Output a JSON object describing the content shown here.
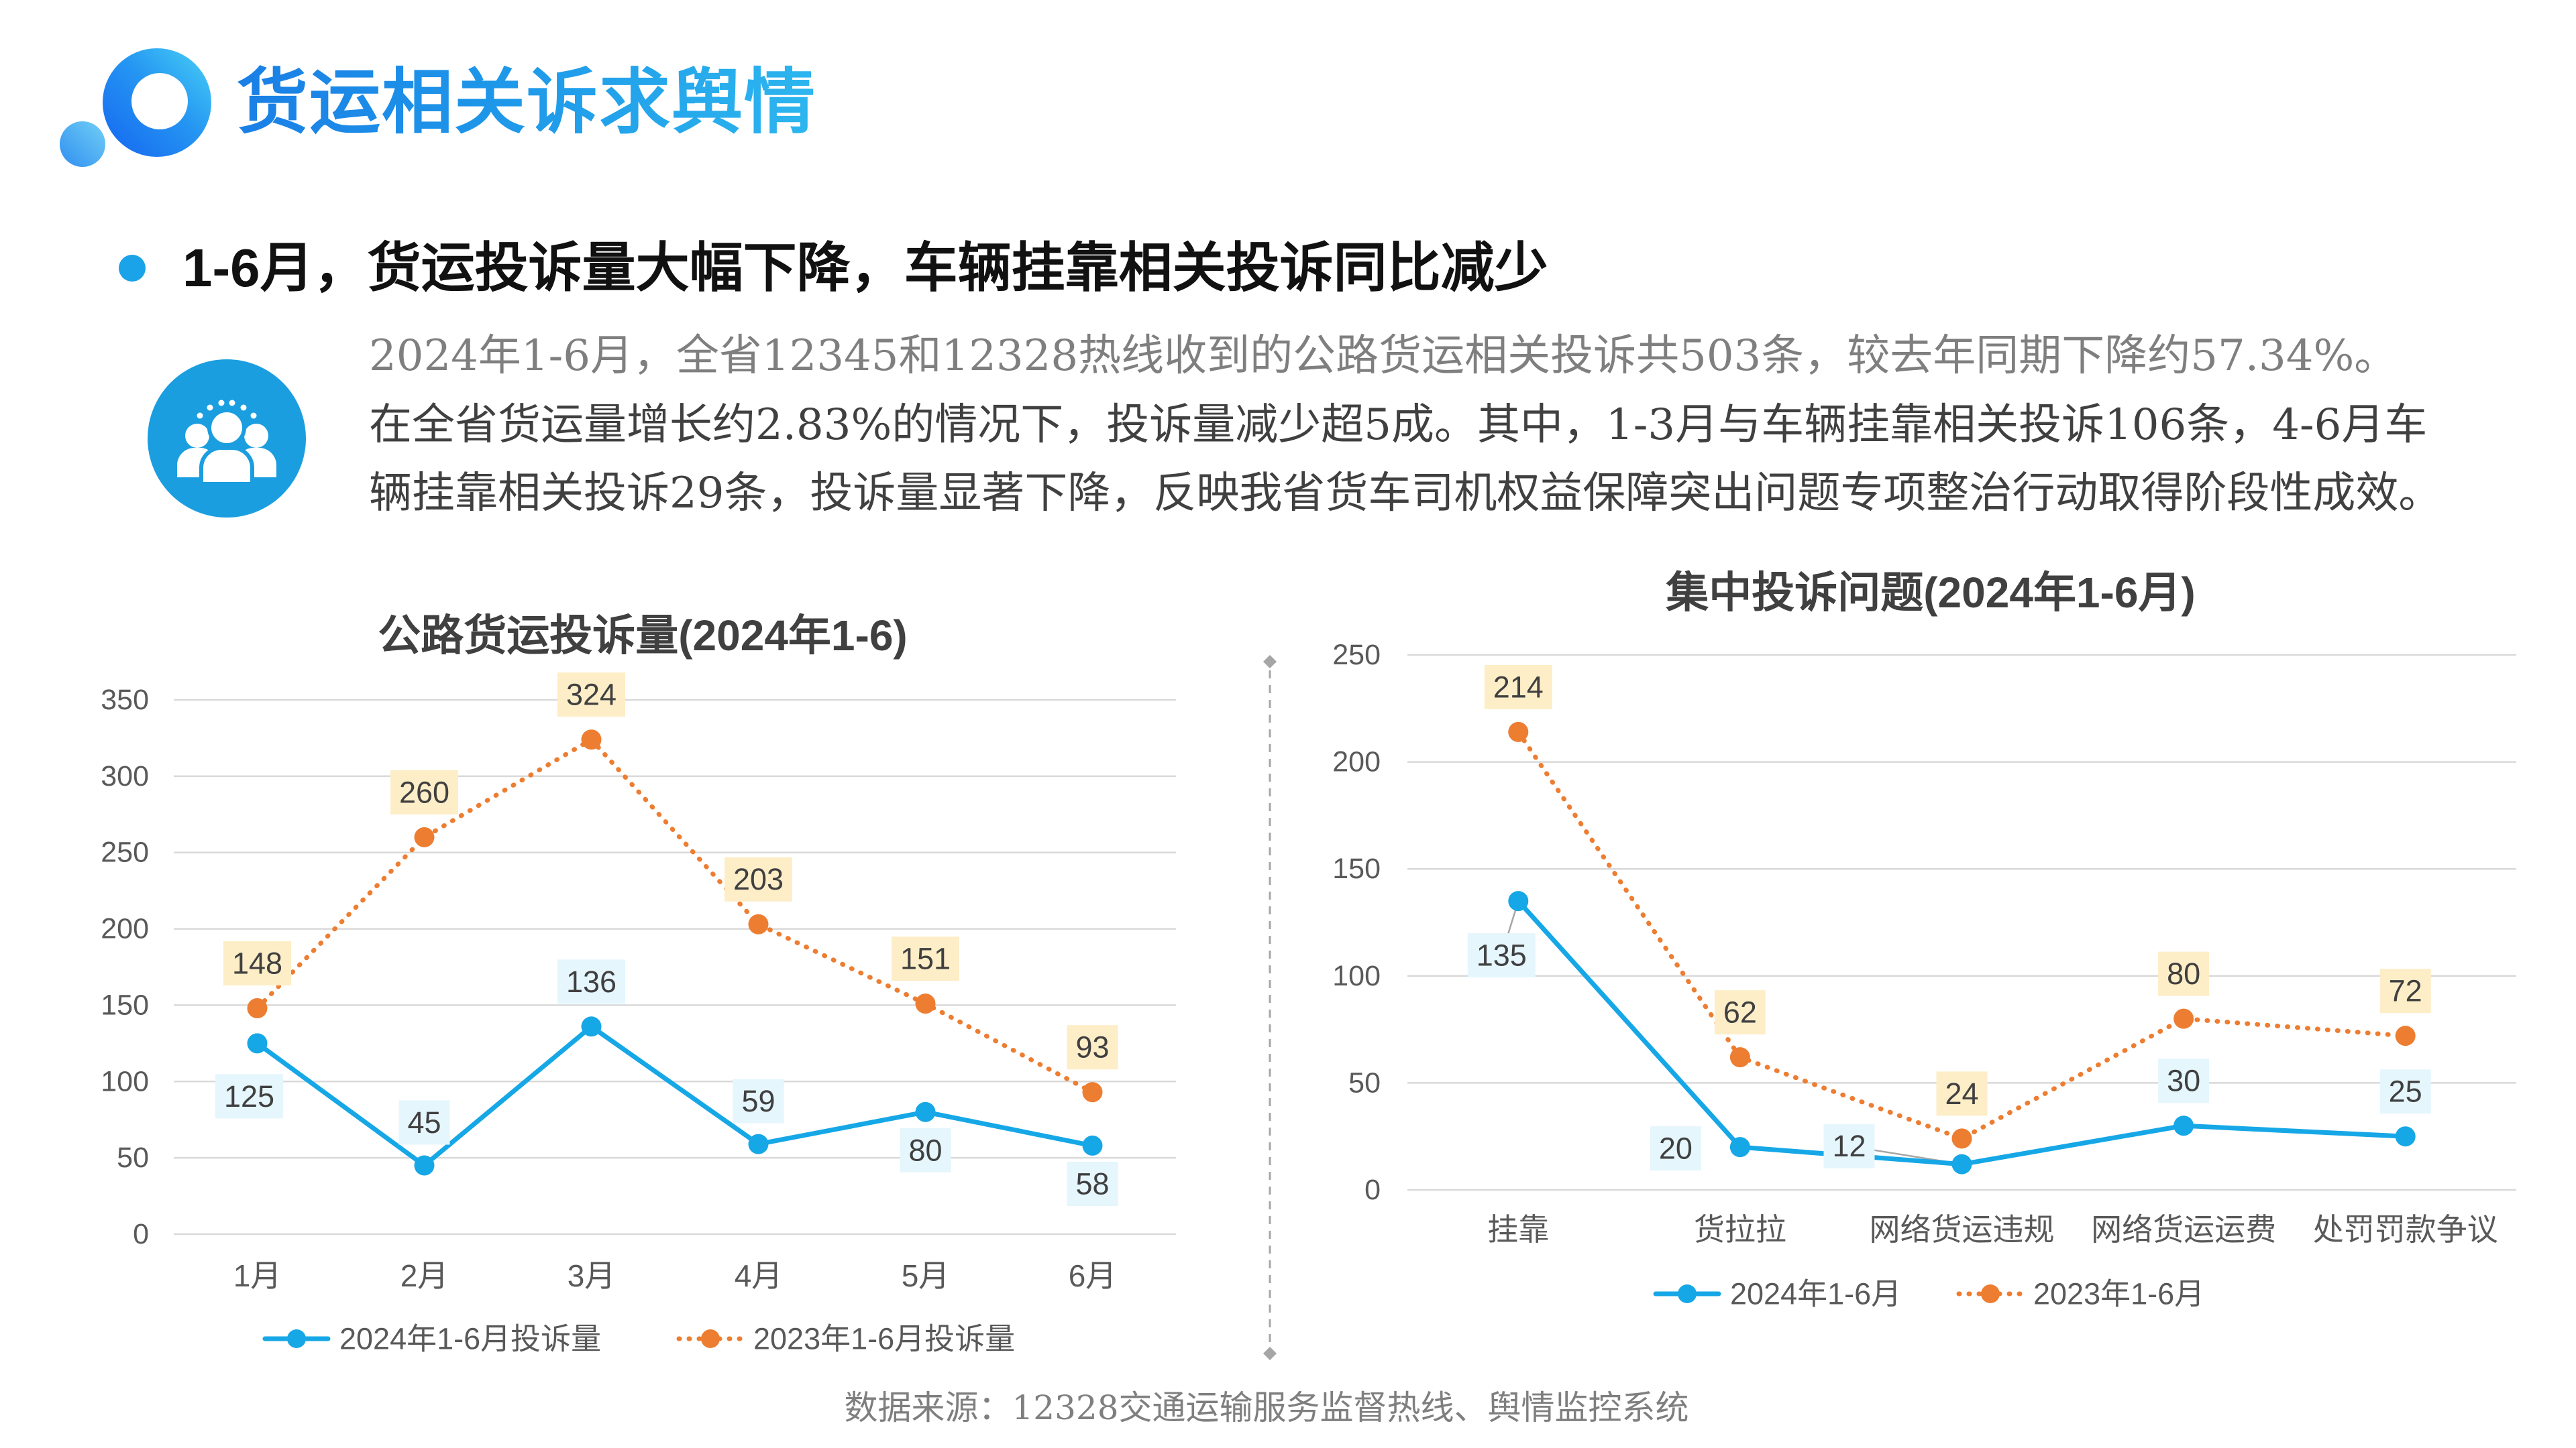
{
  "header": {
    "title": "货运相关诉求舆情"
  },
  "headline": {
    "text": "1-6月，货运投诉量大幅下降，车辆挂靠相关投诉同比减少"
  },
  "summary": {
    "lines": [
      "2024年1-6月，全省12345和12328热线收到的公路货运相关投诉共503条，较去年同期下降约57.34%。",
      "在全省货运量增长约2.83%的情况下，投诉量减少超5成。其中，1-3月与车辆挂靠相关投诉106条，4-6月车",
      "辆挂靠相关投诉29条，投诉量显著下降，反映我省货车司机权益保障突出问题专项整治行动取得阶段性成效。"
    ]
  },
  "icons": {
    "logo": "logo-rings-icon",
    "bullet": "bullet-dot-icon",
    "summary": "people-group-icon"
  },
  "colors": {
    "title": "#1d8fe8",
    "accent": "#1aa3e8",
    "icon_bg": "#1a9ee0",
    "series_2024": "#16a7e6",
    "series_2023": "#ed7d31"
  },
  "chart_data": [
    {
      "type": "line",
      "title": "公路货运投诉量(2024年1-6)",
      "categories": [
        "1月",
        "2月",
        "3月",
        "4月",
        "5月",
        "6月"
      ],
      "series": [
        {
          "name": "2024年1-6月投诉量",
          "values": [
            125,
            45,
            136,
            59,
            80,
            58
          ],
          "color": "#16a7e6",
          "label_bg": "#e5f6fd",
          "style": "solid",
          "marker": "circle"
        },
        {
          "name": "2023年1-6月投诉量",
          "values": [
            148,
            260,
            324,
            203,
            151,
            93
          ],
          "color": "#ed7d31",
          "label_bg": "#fdeec8",
          "style": "dotted",
          "marker": "circle"
        }
      ],
      "ylim": [
        0,
        350
      ],
      "yticks": [
        0,
        50,
        100,
        150,
        200,
        250,
        300,
        350
      ],
      "grid": true,
      "legend": "bottom",
      "data_labels": true
    },
    {
      "type": "line",
      "title": "集中投诉问题(2024年1-6月)",
      "categories": [
        "挂靠",
        "货拉拉",
        "网络货运违规",
        "网络货运运费",
        "处罚罚款争议"
      ],
      "series": [
        {
          "name": "2024年1-6月",
          "values": [
            135,
            20,
            12,
            30,
            25
          ],
          "color": "#16a7e6",
          "label_bg": "#e5f6fd",
          "style": "solid",
          "marker": "circle"
        },
        {
          "name": "2023年1-6月",
          "values": [
            214,
            62,
            24,
            80,
            72
          ],
          "color": "#ed7d31",
          "label_bg": "#fdeec8",
          "style": "dotted",
          "marker": "circle"
        }
      ],
      "ylim": [
        0,
        250
      ],
      "yticks": [
        0,
        50,
        100,
        150,
        200,
        250
      ],
      "grid": true,
      "legend": "bottom",
      "data_labels": true
    }
  ],
  "source": {
    "text": "数据来源：12328交通运输服务监督热线、舆情监控系统"
  }
}
